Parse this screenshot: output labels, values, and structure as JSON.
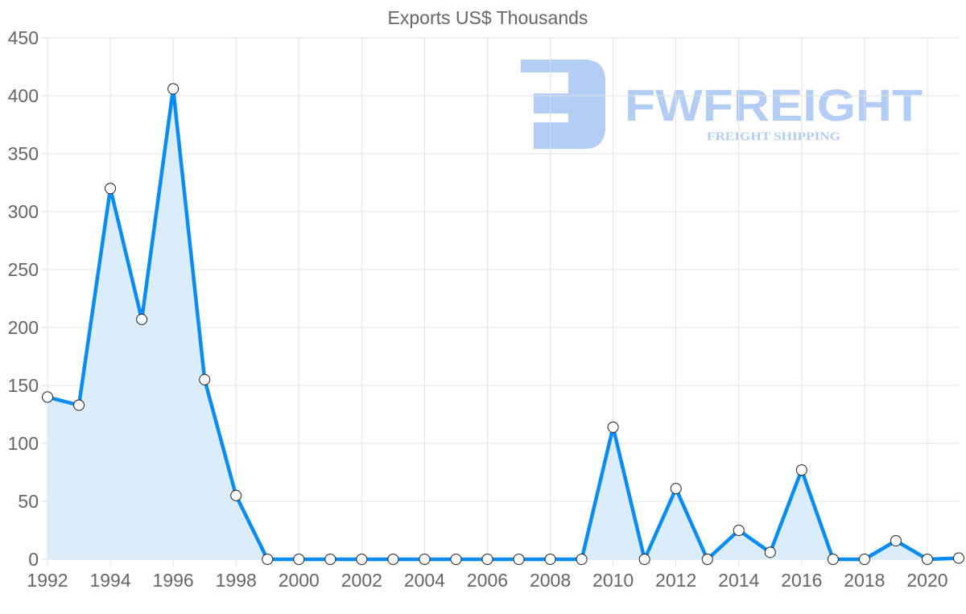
{
  "chart_data": {
    "type": "line",
    "title": "Exports US$ Thousands",
    "xlabel": "",
    "ylabel": "",
    "x": [
      1992,
      1993,
      1994,
      1995,
      1996,
      1997,
      1998,
      1999,
      2000,
      2001,
      2002,
      2003,
      2004,
      2005,
      2006,
      2007,
      2008,
      2009,
      2010,
      2011,
      2012,
      2013,
      2014,
      2015,
      2016,
      2017,
      2018,
      2019,
      2020,
      2021
    ],
    "series": [
      {
        "name": "Exports US$ Thousands",
        "values": [
          140,
          133,
          320,
          207,
          406,
          155,
          55,
          0,
          0,
          0,
          0,
          0,
          0,
          0,
          0,
          0,
          0,
          0,
          114,
          0,
          61,
          0,
          25,
          6,
          77,
          0,
          0,
          16,
          0,
          1
        ],
        "line_color": "#0a8cf0",
        "fill_color": "#d9ecfb",
        "area_fill": true
      }
    ],
    "xticks": [
      "1992",
      "1994",
      "1996",
      "1998",
      "2000",
      "2002",
      "2004",
      "2006",
      "2008",
      "2010",
      "2012",
      "2014",
      "2016",
      "2018",
      "2020"
    ],
    "yticks": [
      0,
      50,
      100,
      150,
      200,
      250,
      300,
      350,
      400,
      450
    ],
    "ylim": [
      0,
      450
    ],
    "xlim": [
      1992,
      2021
    ],
    "grid": true,
    "legend": "none"
  },
  "watermark": {
    "brand": "FWFREIGHT",
    "tagline": "FREIGHT SHIPPING",
    "color": "#b3cdf4"
  }
}
